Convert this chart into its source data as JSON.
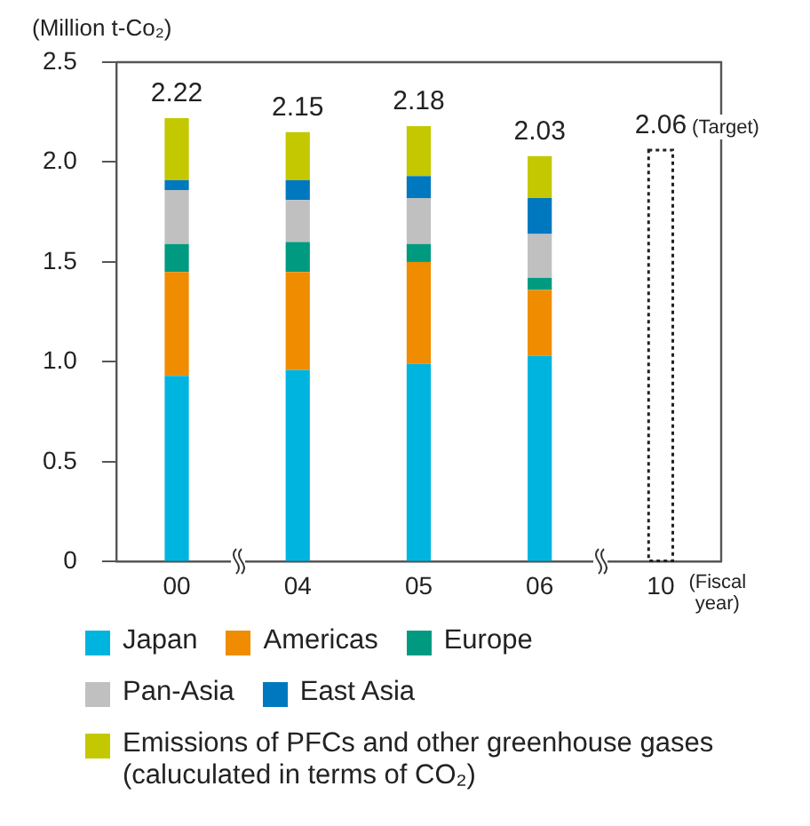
{
  "chart_data": {
    "type": "bar",
    "stacked": true,
    "ylabel": "(Million t-Co₂)",
    "xlabel": "(Fiscal year)",
    "categories": [
      "00",
      "04",
      "05",
      "06",
      "10"
    ],
    "series": [
      {
        "name": "Japan",
        "color": "#00b4e0",
        "values": [
          0.93,
          0.96,
          0.99,
          1.03,
          null
        ]
      },
      {
        "name": "Americas",
        "color": "#f08c00",
        "values": [
          0.52,
          0.49,
          0.51,
          0.33,
          null
        ]
      },
      {
        "name": "Europe",
        "color": "#009a80",
        "values": [
          0.14,
          0.15,
          0.09,
          0.06,
          null
        ]
      },
      {
        "name": "Pan-Asia",
        "color": "#c0c0c0",
        "values": [
          0.27,
          0.21,
          0.23,
          0.22,
          null
        ]
      },
      {
        "name": "East Asia",
        "color": "#0078bf",
        "values": [
          0.05,
          0.1,
          0.11,
          0.18,
          null
        ]
      },
      {
        "name": "Emissions of PFCs and other greenhouse gases (caluculated in terms of CO₂)",
        "color": "#c3c800",
        "values": [
          0.31,
          0.24,
          0.25,
          0.21,
          null
        ]
      },
      {
        "color": "#222222",
        "line_style": "dotted",
        "values": [
          null,
          null,
          null,
          null,
          2.06
        ]
      }
    ],
    "totals": [
      "2.22",
      "2.15",
      "2.18",
      "2.03",
      "2.06"
    ],
    "annotations": [
      {
        "text": "(Target)",
        "x": "10",
        "y": 2.06
      }
    ],
    "ylim": [
      0,
      2.5
    ],
    "yticks": [
      0,
      0.5,
      {
        "value": 1,
        "label": "1.0"
      },
      1.5,
      {
        "value": 2,
        "label": "2.0"
      },
      2.5
    ],
    "grid": false,
    "legend": "bottom"
  }
}
